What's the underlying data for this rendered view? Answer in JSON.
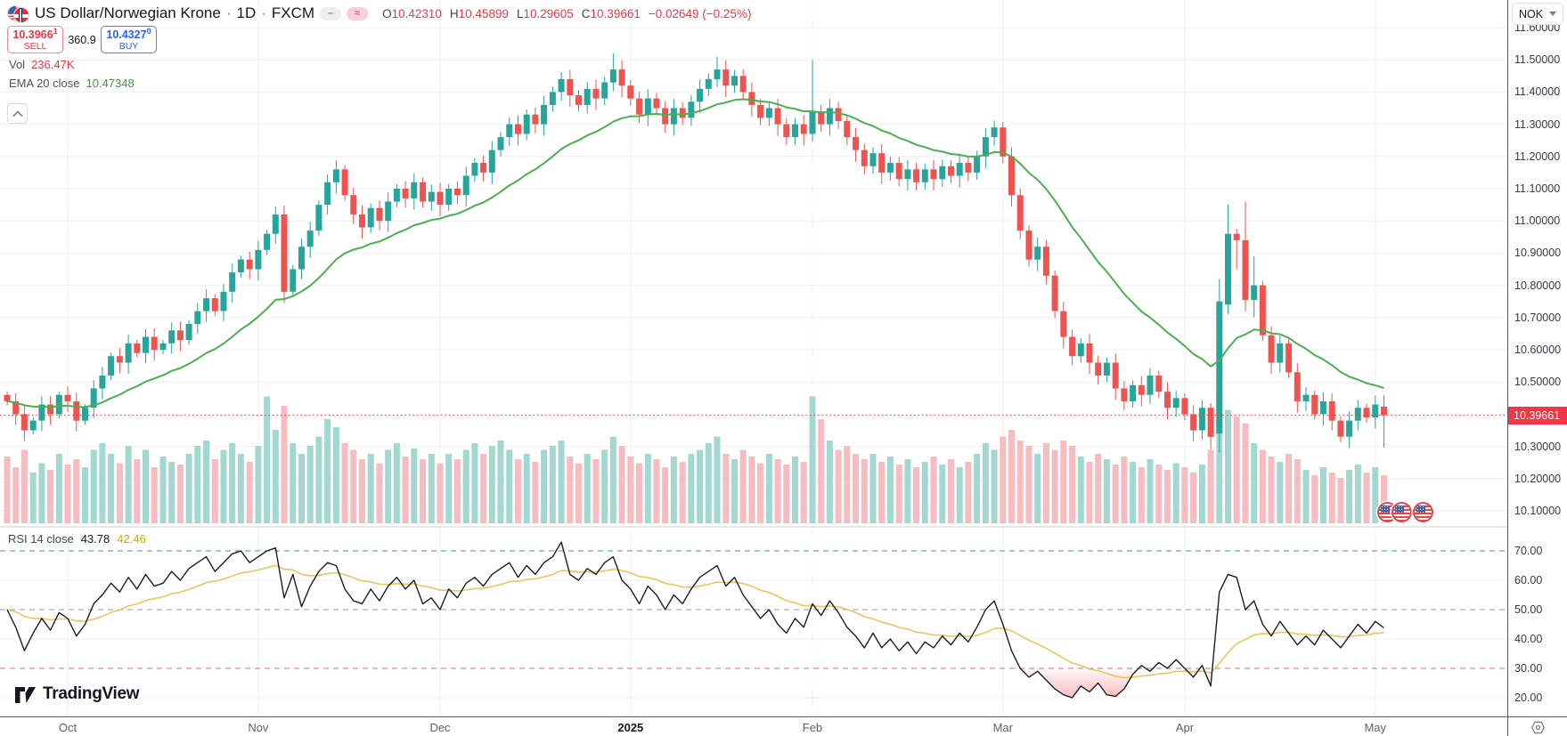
{
  "header": {
    "title": "US Dollar/Norwegian Krone",
    "sep": "·",
    "interval": "1D",
    "exchange": "FXCM",
    "icons": {
      "symbol": "us-norway-flag-pair-icon",
      "minimize_pill": "minus-pill-icon",
      "approx_pill": "approx-pill-icon",
      "collapse": "chevron-up-icon",
      "currency_caret": "chevron-down-icon",
      "corner": "hexagon-dot-icon",
      "event_markers": "us-flag-event-icon"
    },
    "pill_minus": "–",
    "pill_approx": "≈",
    "ohlc": {
      "o_label": "O",
      "o": "10.42310",
      "h_label": "H",
      "h": "10.45899",
      "l_label": "L",
      "l": "10.29605",
      "c_label": "C",
      "c": "10.39661",
      "change": "−0.02649 (−0.25%)"
    },
    "sell_button": {
      "price": "10.3966",
      "sup": "1",
      "label": "SELL"
    },
    "spread": "360.9",
    "buy_button": {
      "price": "10.4327",
      "sup": "0",
      "label": "BUY"
    },
    "vol_label": "Vol",
    "vol_value": "236.47K",
    "ema_label": "EMA 20 close",
    "ema_value": "10.47348"
  },
  "rsi_pane": {
    "label": "RSI 14 close",
    "value": "43.78",
    "ma_value": "42.46"
  },
  "logo_text": "TradingView",
  "axis": {
    "currency": "NOK",
    "price_ticks": [
      "11.60000",
      "11.50000",
      "11.40000",
      "11.30000",
      "11.20000",
      "11.10000",
      "11.00000",
      "10.90000",
      "10.80000",
      "10.70000",
      "10.60000",
      "10.50000",
      "10.40000",
      "10.30000",
      "10.20000",
      "10.10000"
    ],
    "last_price_label": "10.39661",
    "rsi_ticks": [
      "70.00",
      "60.00",
      "50.00",
      "40.00",
      "30.00",
      "20.00"
    ],
    "rsi_dashed_levels": [
      70,
      50,
      30
    ]
  },
  "colors": {
    "up": "#26a69a",
    "down": "#ef5350",
    "vol_up": "#a3d8d1",
    "vol_down": "#f6bcc0",
    "ema": "#4caf50",
    "rsi_line": "#1c1e24",
    "rsi_ma": "#e9c75f",
    "last_price": "#f23645",
    "level70": "#3f9e8d",
    "level50": "#9598a1",
    "level30": "#e06a6a",
    "grid": "#eef1f6"
  },
  "chart_data": {
    "type": "candlestick+volume+rsi",
    "symbol": "US Dollar / Norwegian Krone",
    "exchange": "FXCM",
    "timeframe": "1D",
    "price_axis_range": [
      10.05,
      11.62
    ],
    "rsi_axis_range": [
      15,
      75
    ],
    "rsi_levels": {
      "upper": 70,
      "middle": 50,
      "lower": 30
    },
    "last_price": 10.39661,
    "last_candle_ohlc": [
      10.4231,
      10.45899,
      10.29605,
      10.39661
    ],
    "ema_period": 20,
    "ema_last": 10.47348,
    "rsi_last": 43.78,
    "rsi_ma_last": 42.46,
    "volume_last_label": "236.47K",
    "months": [
      {
        "label": "Oct",
        "i": 7
      },
      {
        "label": "Nov",
        "i": 29
      },
      {
        "label": "Dec",
        "i": 50
      },
      {
        "label": "2025",
        "i": 72,
        "bold": true
      },
      {
        "label": "Feb",
        "i": 93
      },
      {
        "label": "Mar",
        "i": 115
      },
      {
        "label": "Apr",
        "i": 136
      },
      {
        "label": "May",
        "i": 158
      }
    ],
    "closes": [
      10.44,
      10.4,
      10.35,
      10.38,
      10.43,
      10.4,
      10.46,
      10.44,
      10.38,
      10.42,
      10.48,
      10.52,
      10.58,
      10.56,
      10.62,
      10.59,
      10.64,
      10.6,
      10.62,
      10.66,
      10.63,
      10.68,
      10.72,
      10.76,
      10.72,
      10.78,
      10.84,
      10.88,
      10.85,
      10.91,
      10.96,
      11.02,
      10.78,
      10.85,
      10.92,
      10.97,
      11.05,
      11.12,
      11.16,
      11.08,
      11.02,
      10.98,
      11.04,
      11.0,
      11.06,
      11.1,
      11.07,
      11.12,
      11.06,
      11.09,
      11.05,
      11.1,
      11.08,
      11.14,
      11.18,
      11.15,
      11.22,
      11.26,
      11.3,
      11.27,
      11.33,
      11.3,
      11.36,
      11.4,
      11.44,
      11.39,
      11.36,
      11.41,
      11.38,
      11.43,
      11.47,
      11.42,
      11.38,
      11.33,
      11.38,
      11.35,
      11.3,
      11.35,
      11.32,
      11.37,
      11.41,
      11.44,
      11.47,
      11.42,
      11.45,
      11.4,
      11.36,
      11.32,
      11.35,
      11.3,
      11.26,
      11.3,
      11.27,
      11.34,
      11.3,
      11.35,
      11.31,
      11.26,
      11.22,
      11.17,
      11.21,
      11.15,
      11.18,
      11.13,
      11.16,
      11.12,
      11.16,
      11.13,
      11.17,
      11.14,
      11.18,
      11.15,
      11.2,
      11.26,
      11.29,
      11.2,
      11.08,
      10.97,
      10.88,
      10.92,
      10.83,
      10.72,
      10.64,
      10.58,
      10.62,
      10.56,
      10.52,
      10.56,
      10.48,
      10.44,
      10.49,
      10.46,
      10.52,
      10.47,
      10.42,
      10.45,
      10.4,
      10.35,
      10.42,
      10.33,
      10.75,
      10.96,
      10.94,
      10.755,
      10.8,
      10.645,
      10.56,
      10.62,
      10.53,
      10.44,
      10.46,
      10.4,
      10.44,
      10.38,
      10.33,
      10.38,
      10.42,
      10.39,
      10.43,
      10.3966
    ],
    "overrides": {
      "0": {
        "o": 10.46
      },
      "70": {
        "h": 11.52
      },
      "82": {
        "h": 11.51
      },
      "93": {
        "h": 11.5
      },
      "139": {
        "l": 10.29
      },
      "140": {
        "o": 10.34,
        "h": 10.82,
        "l": 10.28
      },
      "141": {
        "o": 10.74,
        "h": 11.05
      },
      "142": {
        "l": 10.85
      },
      "143": {
        "h": 11.06
      },
      "144": {
        "h": 10.89,
        "l": 10.7
      },
      "159": {
        "o": 10.4231,
        "h": 10.45899,
        "l": 10.29605
      }
    },
    "volume_rel": [
      0.5,
      0.42,
      0.55,
      0.38,
      0.45,
      0.4,
      0.52,
      0.44,
      0.48,
      0.42,
      0.55,
      0.6,
      0.52,
      0.45,
      0.58,
      0.48,
      0.55,
      0.42,
      0.5,
      0.46,
      0.44,
      0.52,
      0.58,
      0.62,
      0.48,
      0.55,
      0.6,
      0.52,
      0.46,
      0.58,
      0.95,
      0.7,
      0.88,
      0.6,
      0.52,
      0.58,
      0.65,
      0.78,
      0.72,
      0.6,
      0.55,
      0.48,
      0.52,
      0.45,
      0.55,
      0.6,
      0.5,
      0.56,
      0.48,
      0.52,
      0.45,
      0.52,
      0.48,
      0.55,
      0.6,
      0.52,
      0.58,
      0.62,
      0.55,
      0.48,
      0.52,
      0.46,
      0.55,
      0.58,
      0.62,
      0.5,
      0.45,
      0.52,
      0.48,
      0.55,
      0.65,
      0.58,
      0.5,
      0.45,
      0.52,
      0.48,
      0.42,
      0.5,
      0.46,
      0.52,
      0.55,
      0.6,
      0.65,
      0.52,
      0.48,
      0.55,
      0.5,
      0.45,
      0.52,
      0.48,
      0.44,
      0.5,
      0.46,
      0.95,
      0.78,
      0.62,
      0.55,
      0.58,
      0.52,
      0.48,
      0.52,
      0.46,
      0.5,
      0.44,
      0.48,
      0.42,
      0.46,
      0.5,
      0.44,
      0.48,
      0.42,
      0.46,
      0.52,
      0.6,
      0.55,
      0.65,
      0.7,
      0.62,
      0.58,
      0.52,
      0.6,
      0.55,
      0.62,
      0.58,
      0.5,
      0.46,
      0.52,
      0.48,
      0.44,
      0.5,
      0.46,
      0.42,
      0.48,
      0.44,
      0.4,
      0.45,
      0.42,
      0.38,
      0.44,
      0.55,
      0.98,
      0.85,
      0.8,
      0.75,
      0.6,
      0.55,
      0.5,
      0.46,
      0.52,
      0.48,
      0.4,
      0.36,
      0.42,
      0.38,
      0.34,
      0.4,
      0.44,
      0.38,
      0.42,
      0.36
    ],
    "rsi": [
      50,
      44,
      36,
      42,
      47,
      43,
      49,
      47,
      41,
      45,
      52,
      55,
      59,
      56,
      61,
      57,
      62,
      58,
      59,
      63,
      60,
      64,
      66,
      68,
      63,
      66,
      69,
      70,
      66,
      68,
      70,
      71,
      54,
      62,
      51,
      58,
      63,
      66,
      65,
      57,
      53,
      52,
      57,
      53,
      58,
      61,
      57,
      60,
      52,
      54,
      50,
      57,
      54,
      59,
      61,
      58,
      62,
      64,
      66,
      61,
      65,
      62,
      66,
      68,
      73,
      62,
      60,
      64,
      62,
      66,
      68,
      60,
      57,
      52,
      58,
      55,
      50,
      55,
      52,
      57,
      61,
      63,
      65,
      58,
      61,
      55,
      51,
      47,
      50,
      45,
      42,
      47,
      44,
      52,
      48,
      53,
      49,
      44,
      41,
      37,
      42,
      37,
      40,
      36,
      39,
      35,
      39,
      37,
      41,
      38,
      42,
      39,
      44,
      50,
      53,
      45,
      36,
      30,
      27,
      29,
      26,
      23,
      21,
      20,
      24,
      22,
      25,
      21,
      20.5,
      23,
      28,
      31,
      29,
      32,
      30,
      33,
      30,
      27,
      31,
      24,
      56,
      62,
      61,
      50,
      53,
      45,
      41,
      46,
      42,
      38,
      41,
      38,
      43,
      40,
      37,
      41,
      45,
      42,
      46,
      43.78
    ]
  }
}
